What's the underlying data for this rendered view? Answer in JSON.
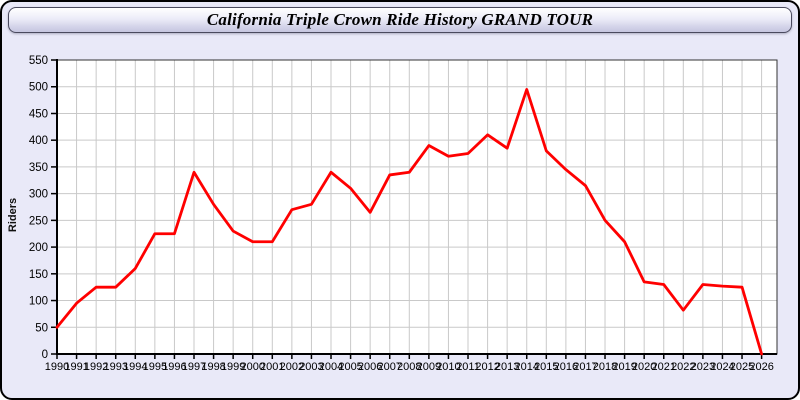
{
  "header": {
    "title": "California Triple Crown Ride History GRAND TOUR"
  },
  "chart_data": {
    "type": "line",
    "title": "California Triple Crown Ride History GRAND TOUR",
    "xlabel": "",
    "ylabel": "Riders",
    "x": [
      1990,
      1991,
      1992,
      1993,
      1994,
      1995,
      1996,
      1997,
      1998,
      1999,
      2000,
      2001,
      2002,
      2003,
      2004,
      2005,
      2006,
      2007,
      2008,
      2009,
      2010,
      2011,
      2012,
      2013,
      2014,
      2015,
      2016,
      2017,
      2018,
      2019,
      2020,
      2021,
      2022,
      2023,
      2024,
      2025,
      2026
    ],
    "series": [
      {
        "name": "Riders",
        "color": "#ff0000",
        "values": [
          50,
          95,
          125,
          125,
          160,
          225,
          225,
          340,
          280,
          230,
          210,
          210,
          270,
          280,
          340,
          310,
          265,
          335,
          340,
          390,
          370,
          375,
          410,
          385,
          495,
          380,
          345,
          315,
          250,
          210,
          135,
          130,
          82,
          130,
          127,
          125,
          0
        ]
      }
    ],
    "ylim": [
      0,
      550
    ],
    "ytick_step": 50,
    "grid": true,
    "legend": false
  },
  "style": {
    "line_color": "#ff0000",
    "window_background": "#e9e9f8",
    "plot_background": "#ffffff",
    "grid_color": "#c9c9c9",
    "axis_color": "#000000",
    "tick_label_color": "#000000"
  }
}
